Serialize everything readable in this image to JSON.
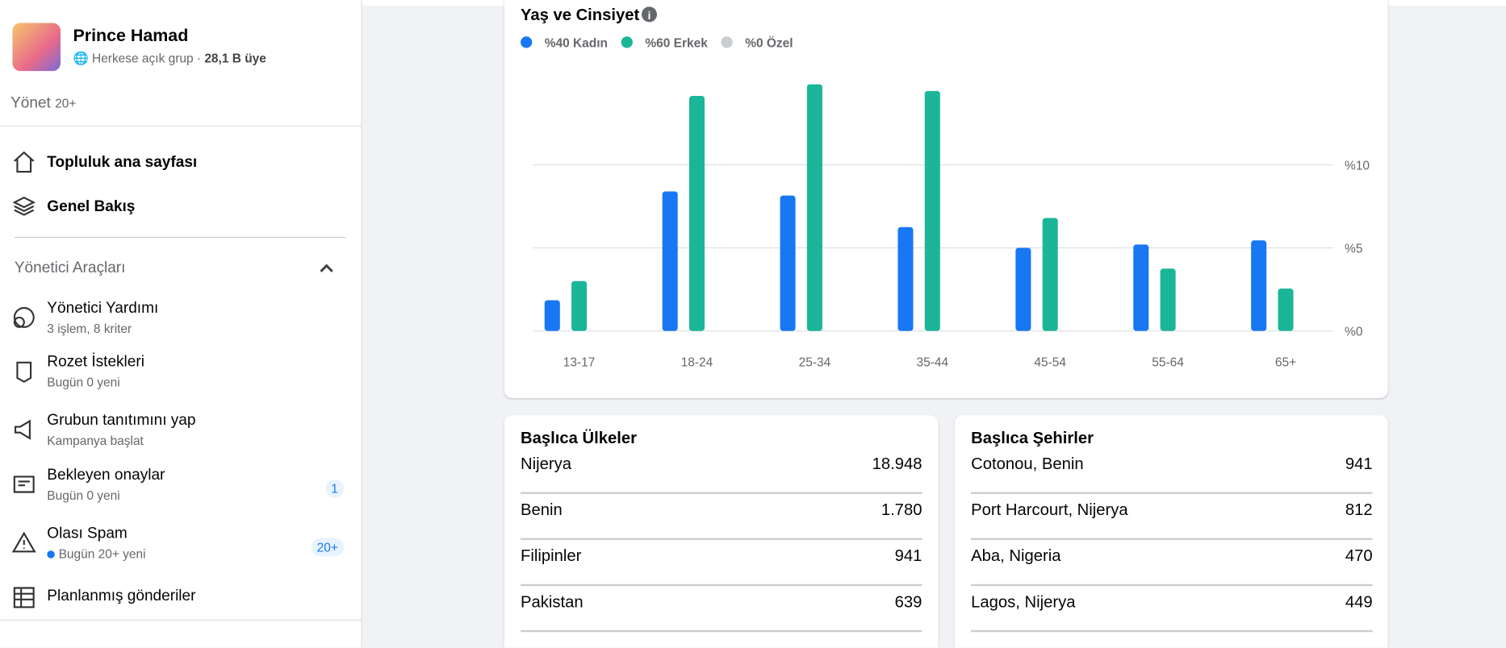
{
  "sidebar": {
    "group_name": "Prince Hamad",
    "group_type": "Herkese açık grup ·",
    "members": "28,1 B üye",
    "manage": "Yönet",
    "manage_count": "20+",
    "nav": [
      "Topluluk ana sayfası",
      "Genel Bakış"
    ],
    "tools_title": "Yönetici Araçları",
    "tools": [
      {
        "title": "Yönetici Yardımı",
        "subtitle": "3 işlem, 8 kriter"
      },
      {
        "title": "Rozet İstekleri",
        "subtitle": "Bugün 0 yeni"
      },
      {
        "title": "Grubun tanıtımını yap",
        "subtitle": "Kampanya başlat"
      },
      {
        "title": "Bekleyen onaylar",
        "subtitle": "Bugün 0 yeni",
        "badge": "1"
      },
      {
        "title": "Olası Spam",
        "subtitle": "Bugün 20+ yeni",
        "badge": "20+"
      },
      {
        "title": "Planlanmış gönderiler"
      }
    ]
  },
  "chart_data": {
    "type": "bar",
    "title": "Yaş ve Cinsiyet",
    "categories": [
      "13-17",
      "18-24",
      "25-34",
      "35-44",
      "45-54",
      "55-64",
      "65+"
    ],
    "series": [
      {
        "name": "%40 Kadın",
        "color": "#1877f2",
        "values": [
          1.85,
          8.4,
          8.15,
          6.25,
          5.0,
          5.2,
          5.45
        ]
      },
      {
        "name": "%60 Erkek",
        "color": "#1bb697",
        "values": [
          3.0,
          14.15,
          14.85,
          14.45,
          6.8,
          3.75,
          2.55
        ]
      },
      {
        "name": "%0 Özel",
        "color": "#c9ccd1",
        "values": [
          0,
          0,
          0,
          0,
          0,
          0,
          0
        ]
      }
    ],
    "ylim": [
      0,
      16
    ],
    "yticks": [
      {
        "value": 0,
        "label": "%0"
      },
      {
        "value": 5,
        "label": "%5"
      },
      {
        "value": 10,
        "label": "%10"
      }
    ],
    "grid": true
  },
  "countries": {
    "title": "Başlıca Ülkeler",
    "rows": [
      [
        "Nijerya",
        "18.948"
      ],
      [
        "Benin",
        "1.780"
      ],
      [
        "Filipinler",
        "941"
      ],
      [
        "Pakistan",
        "639"
      ]
    ]
  },
  "cities": {
    "title": "Başlıca Şehirler",
    "rows": [
      [
        "Cotonou, Benin",
        "941"
      ],
      [
        "Port Harcourt, Nijerya",
        "812"
      ],
      [
        "Aba, Nigeria",
        "470"
      ],
      [
        "Lagos, Nijerya",
        "449"
      ]
    ]
  }
}
